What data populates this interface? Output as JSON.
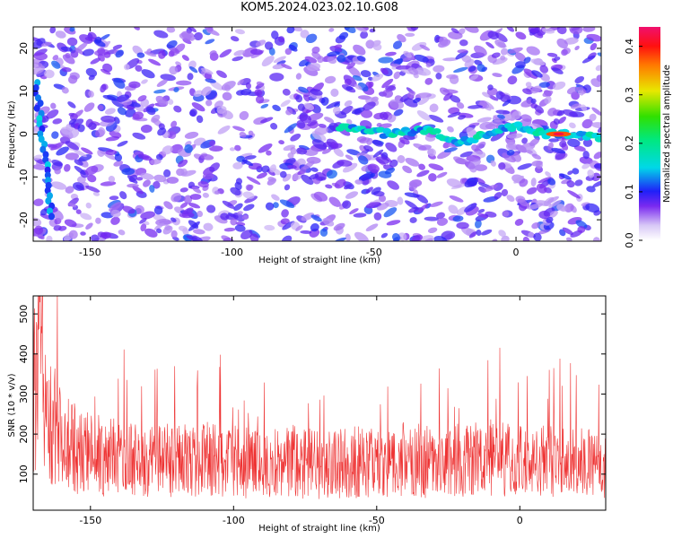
{
  "title": "KOM5.2024.023.02.10.G08",
  "colors": {
    "snr_line": "#ee3333",
    "frame": "#000000",
    "background": "#ffffff"
  },
  "chart_data": [
    {
      "type": "heatmap",
      "xlabel": "Height of straight line (km)",
      "ylabel": "Frequency (Hz)",
      "xlim": [
        -170,
        30
      ],
      "ylim": [
        -25,
        25
      ],
      "xticks": [
        -150,
        -100,
        -50,
        0
      ],
      "yticks": [
        -20,
        -10,
        0,
        10,
        20
      ],
      "colorbar": {
        "label": "Normalized spectral amplitude",
        "range": [
          0.0,
          0.44
        ],
        "ticks": [
          "0.0",
          "0.1",
          "0.2",
          "0.3",
          "0.4"
        ],
        "tick_values": [
          0.0,
          0.1,
          0.2,
          0.3,
          0.4
        ]
      },
      "ridge": {
        "description_points_x": [
          -169,
          -166,
          -163,
          -60,
          -45,
          -30,
          -20,
          -10,
          0,
          10,
          20,
          30
        ],
        "description_points_y": [
          9,
          0,
          -10,
          2,
          0,
          1,
          -2,
          0,
          2,
          0,
          0,
          -1
        ],
        "peak_x": 15,
        "peak_y": 0,
        "peak_value": 0.44
      }
    },
    {
      "type": "line",
      "xlabel": "Height of straight line (km)",
      "ylabel": "SNR (10 * v/v)",
      "xlim": [
        -170,
        30
      ],
      "ylim": [
        10,
        545
      ],
      "xticks": [
        -150,
        -100,
        -50,
        0
      ],
      "yticks": [
        100,
        200,
        300,
        400,
        500
      ],
      "series": [
        {
          "x": [
            -170,
            -168,
            -166,
            -164,
            -162,
            -160,
            -155,
            -150,
            -140,
            -130,
            -120,
            -110,
            -100,
            -90,
            -80,
            -70,
            -60,
            -50,
            -40,
            -30,
            -20,
            -10,
            0,
            10,
            20,
            30
          ],
          "y": [
            330,
            545,
            360,
            300,
            250,
            220,
            195,
            180,
            170,
            165,
            160,
            165,
            160,
            150,
            160,
            150,
            160,
            155,
            165,
            160,
            165,
            170,
            160,
            165,
            155,
            150
          ]
        }
      ]
    }
  ]
}
